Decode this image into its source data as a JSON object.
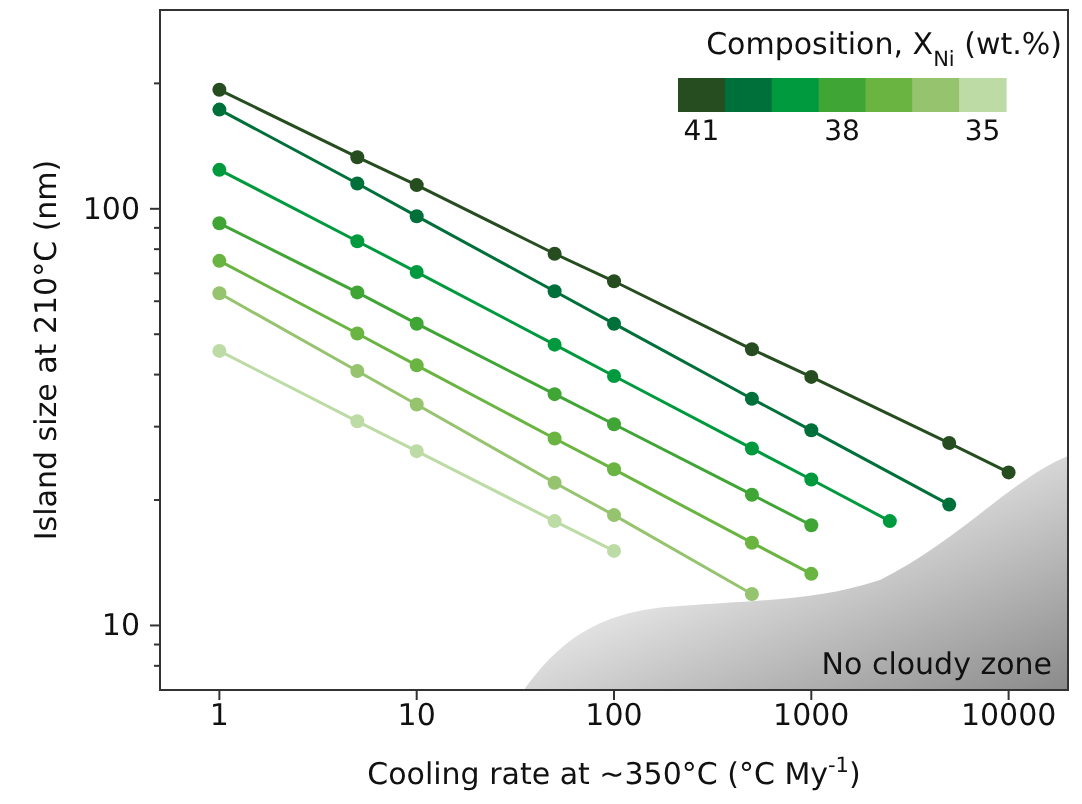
{
  "chart_data": {
    "type": "line",
    "xlabel": "Cooling rate at ~350°C (°C My$^{-1}$)",
    "ylabel": "Island size at 210°C (nm)",
    "legend_title": "Composition, X$_{Ni}$ (wt.%)",
    "log": "xy",
    "xlim": [
      0.5,
      20000
    ],
    "ylim": [
      7,
      300
    ],
    "xticks": [
      1,
      10,
      100,
      1000,
      10000
    ],
    "yticks": [
      {
        "value": 8,
        "label": null
      },
      {
        "value": 9,
        "label": null
      },
      10,
      {
        "value": 20,
        "label": null
      },
      {
        "value": 30,
        "label": null
      },
      {
        "value": 40,
        "label": null
      },
      {
        "value": 50,
        "label": null
      },
      {
        "value": 60,
        "label": null
      },
      {
        "value": 70,
        "label": null
      },
      {
        "value": 80,
        "label": null
      },
      {
        "value": 90,
        "label": null
      },
      100,
      {
        "value": 200,
        "label": null
      }
    ],
    "grid": false,
    "legend": "top right",
    "marker": "circle",
    "line_style": "solid",
    "annotations": [
      "No cloudy zone"
    ],
    "series": [
      {
        "name": "41",
        "color": "#264d1f",
        "x": [
          1,
          5,
          10,
          50,
          100,
          500,
          1000,
          5000,
          10000
        ],
        "values": [
          193,
          133,
          114,
          78,
          67,
          46,
          39.5,
          27.4,
          23.3
        ]
      },
      {
        "color": "#00703a",
        "x": [
          1,
          5,
          10,
          50,
          100,
          500,
          1000,
          5000
        ],
        "values": [
          173,
          115,
          96,
          63.4,
          53,
          35,
          29.4,
          19.5
        ]
      },
      {
        "color": "#009a3e",
        "x": [
          1,
          5,
          10,
          50,
          100,
          500,
          1000,
          2500
        ],
        "values": [
          124,
          83.6,
          70.5,
          47.2,
          39.7,
          26.6,
          22.4,
          17.8
        ]
      },
      {
        "name": "38",
        "color": "#3fa535",
        "x": [
          1,
          5,
          10,
          50,
          100,
          500,
          1000
        ],
        "values": [
          92.3,
          63,
          53,
          35.9,
          30.4,
          20.6,
          17.4
        ]
      },
      {
        "color": "#6ab441",
        "x": [
          1,
          5,
          10,
          50,
          100,
          500,
          1000
        ],
        "values": [
          75,
          50.2,
          42.1,
          28.1,
          23.7,
          15.8,
          13.3
        ]
      },
      {
        "color": "#96c46e",
        "x": [
          1,
          5,
          10,
          50,
          100,
          500
        ],
        "values": [
          62.7,
          40.8,
          33.9,
          22,
          18.4,
          11.9
        ]
      },
      {
        "name": "35",
        "color": "#bcdba5",
        "x": [
          1,
          5,
          10,
          50,
          100
        ],
        "values": [
          45.6,
          30.9,
          26.2,
          17.8,
          15.1
        ]
      }
    ]
  }
}
